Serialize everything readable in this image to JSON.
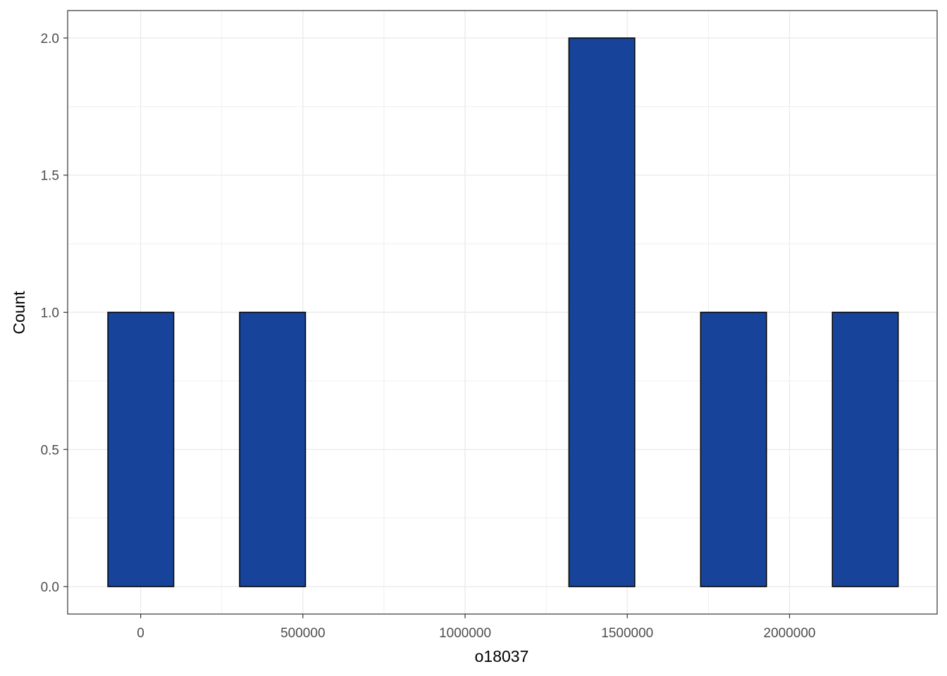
{
  "chart_data": {
    "type": "bar",
    "subtype": "histogram",
    "xlabel": "o18037",
    "ylabel": "Count",
    "x_ticks": [
      0,
      500000,
      1000000,
      1500000,
      2000000
    ],
    "x_tick_labels": [
      "0",
      "500000",
      "1000000",
      "1500000",
      "2000000"
    ],
    "y_ticks": [
      0,
      0.5,
      1,
      1.5,
      2
    ],
    "y_tick_labels": [
      "0.0",
      "0.5",
      "1.0",
      "1.5",
      "2.0"
    ],
    "xlim": [
      -225000,
      2455000
    ],
    "ylim": [
      -0.1,
      2.1
    ],
    "bin_width": 203000,
    "bins": [
      {
        "start": -101000,
        "end": 102000,
        "count": 1
      },
      {
        "start": 102000,
        "end": 305000,
        "count": 0
      },
      {
        "start": 305000,
        "end": 508000,
        "count": 1
      },
      {
        "start": 508000,
        "end": 711000,
        "count": 0
      },
      {
        "start": 711000,
        "end": 914000,
        "count": 0
      },
      {
        "start": 914000,
        "end": 1117000,
        "count": 0
      },
      {
        "start": 1117000,
        "end": 1320000,
        "count": 0
      },
      {
        "start": 1320000,
        "end": 1523000,
        "count": 2
      },
      {
        "start": 1523000,
        "end": 1726000,
        "count": 0
      },
      {
        "start": 1726000,
        "end": 1929000,
        "count": 1
      },
      {
        "start": 1929000,
        "end": 2132000,
        "count": 0
      },
      {
        "start": 2132000,
        "end": 2335000,
        "count": 1
      }
    ],
    "bar_color": "#17449A",
    "bar_outline": "#000000",
    "grid": true,
    "grid_color": "#EBEBEB",
    "panel_border": "#333333",
    "legend": "none"
  }
}
